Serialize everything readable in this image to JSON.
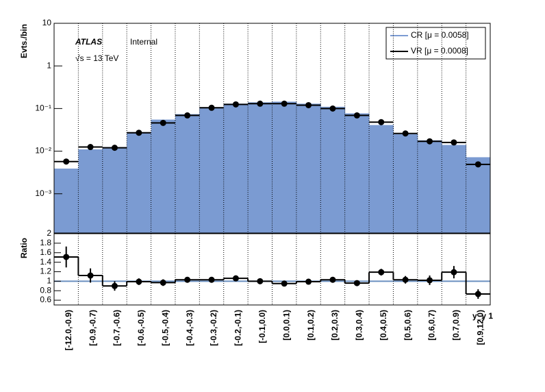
{
  "chart_data": [
    {
      "type": "histogram",
      "ylabel": "Evts./bin",
      "log_y": true,
      "xgrid": true,
      "annotations": [
        "ATLAS",
        "Internal",
        "√s = 13 TeV"
      ],
      "legend": "upper right",
      "categories": [
        "[-12.0,-0.9)",
        "[-0.9,-0.7)",
        "[-0.7,-0.6)",
        "[-0.6,-0.5)",
        "[-0.5,-0.4)",
        "[-0.4,-0.3)",
        "[-0.3,-0.2)",
        "[-0.2,-0.1)",
        "[-0.1,0.0)",
        "[0.0,0.1)",
        "[0.1,0.2)",
        "[0.2,0.3)",
        "[0.3,0.4)",
        "[0.4,0.5)",
        "[0.5,0.6)",
        "[0.6,0.7)",
        "[0.7,0.9)",
        "[0.9,12.0)"
      ],
      "series": [
        {
          "name": "CR [μ = 0.0058]",
          "color": "#7b9bd2",
          "style": "fill",
          "values": [
            0.0039,
            0.011,
            0.0125,
            0.028,
            0.055,
            0.074,
            0.108,
            0.13,
            0.14,
            0.145,
            0.13,
            0.11,
            0.077,
            0.041,
            0.025,
            0.018,
            0.014,
            0.0072
          ]
        },
        {
          "name": "VR [μ = 0.0008]",
          "color": "#000000",
          "style": "points",
          "values": [
            0.0057,
            0.0125,
            0.012,
            0.027,
            0.046,
            0.069,
            0.104,
            0.125,
            0.13,
            0.13,
            0.12,
            0.1,
            0.069,
            0.048,
            0.026,
            0.017,
            0.016,
            0.0049
          ]
        }
      ],
      "ylim": [
        0.00012,
        10
      ],
      "yticks": [
        {
          "value": 0.001,
          "label": "10⁻³"
        },
        {
          "value": 0.01,
          "label": "10⁻²"
        },
        {
          "value": 0.1,
          "label": "10⁻¹"
        },
        1,
        10
      ]
    },
    {
      "type": "ratio",
      "ylabel": "Ratio",
      "xlabel": "y_γ 1",
      "xgrid": true,
      "reference": {
        "color": "#6a8fc0",
        "value": 1
      },
      "series": [
        {
          "color": "#000000",
          "values": [
            1.51,
            1.12,
            0.9,
            0.99,
            0.97,
            1.03,
            1.03,
            1.06,
            1.0,
            0.95,
            0.99,
            1.03,
            0.96,
            1.19,
            1.03,
            1.02,
            1.19,
            0.73
          ],
          "errors": [
            0.22,
            0.15,
            0.1,
            0.07,
            0.07,
            0.05,
            0.04,
            0.04,
            0.03,
            0.03,
            0.03,
            0.04,
            0.05,
            0.07,
            0.08,
            0.1,
            0.13,
            0.1
          ]
        }
      ],
      "ylim": [
        0.5,
        2
      ],
      "yticks": [
        0.6,
        0.8,
        1,
        1.2,
        1.4,
        1.6,
        1.8,
        2
      ]
    }
  ]
}
